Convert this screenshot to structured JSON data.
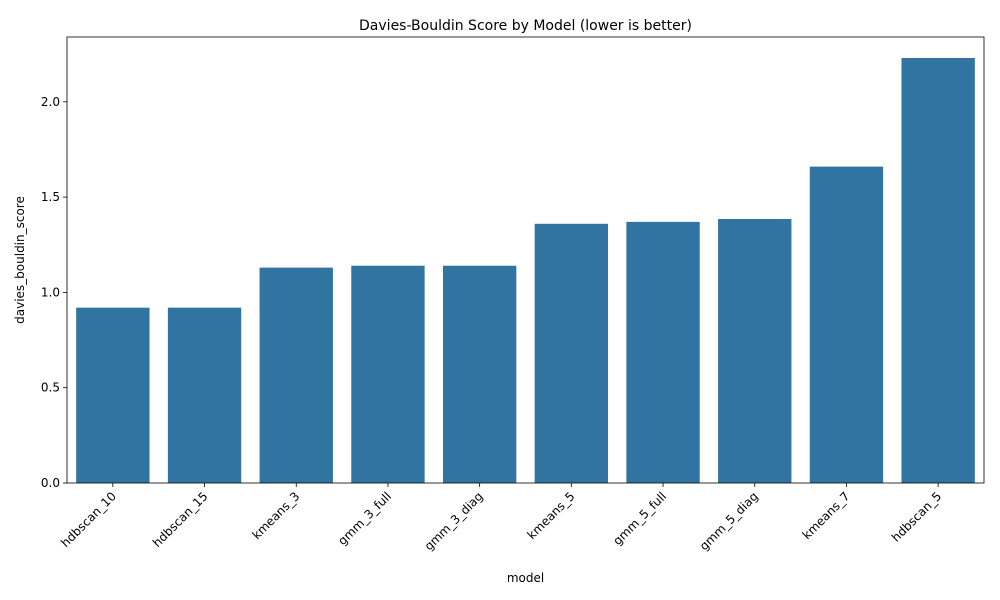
{
  "chart_data": {
    "type": "bar",
    "title": "Davies-Bouldin Score by Model (lower is better)",
    "xlabel": "model",
    "ylabel": "davies_bouldin_score",
    "categories": [
      "hdbscan_10",
      "hdbscan_15",
      "kmeans_3",
      "gmm_3_full",
      "gmm_3_diag",
      "kmeans_5",
      "gmm_5_full",
      "gmm_5_diag",
      "kmeans_7",
      "hdbscan_5"
    ],
    "values": [
      0.92,
      0.92,
      1.13,
      1.14,
      1.14,
      1.36,
      1.37,
      1.385,
      1.66,
      2.23
    ],
    "ylim": [
      0,
      2.34
    ],
    "yticks": [
      0.0,
      0.5,
      1.0,
      1.5,
      2.0
    ],
    "ytick_labels": [
      "0.0",
      "0.5",
      "1.0",
      "1.5",
      "2.0"
    ],
    "bar_color": "#3274a1",
    "grid": false,
    "legend": "none"
  }
}
